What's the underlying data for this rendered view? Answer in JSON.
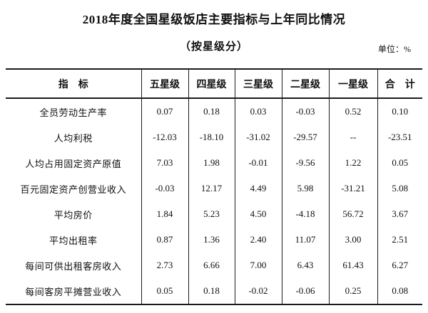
{
  "title": "2018年度全国星级饭店主要指标与上年同比情况",
  "subtitle": "（按星级分）",
  "unit_label": "单位：%",
  "chart_data": {
    "type": "table",
    "columns": [
      "指　标",
      "五星级",
      "四星级",
      "三星级",
      "二星级",
      "一星级",
      "合　计"
    ],
    "rows": [
      {
        "label": "全员劳动生产率",
        "values": [
          "0.07",
          "0.18",
          "0.03",
          "-0.03",
          "0.52",
          "0.10"
        ]
      },
      {
        "label": "人均利税",
        "values": [
          "-12.03",
          "-18.10",
          "-31.02",
          "-29.57",
          "--",
          "-23.51"
        ]
      },
      {
        "label": "人均占用固定资产原值",
        "values": [
          "7.03",
          "1.98",
          "-0.01",
          "-9.56",
          "1.22",
          "0.05"
        ]
      },
      {
        "label": "百元固定资产创营业收入",
        "values": [
          "-0.03",
          "12.17",
          "4.49",
          "5.98",
          "-31.21",
          "5.08"
        ]
      },
      {
        "label": "平均房价",
        "values": [
          "1.84",
          "5.23",
          "4.50",
          "-4.18",
          "56.72",
          "3.67"
        ]
      },
      {
        "label": "平均出租率",
        "values": [
          "0.87",
          "1.36",
          "2.40",
          "11.07",
          "3.00",
          "2.51"
        ]
      },
      {
        "label": "每间可供出租客房收入",
        "values": [
          "2.73",
          "6.66",
          "7.00",
          "6.43",
          "61.43",
          "6.27"
        ]
      },
      {
        "label": "每间客房平摊营业收入",
        "values": [
          "0.05",
          "0.18",
          "-0.02",
          "-0.06",
          "0.25",
          "0.08"
        ]
      }
    ]
  }
}
